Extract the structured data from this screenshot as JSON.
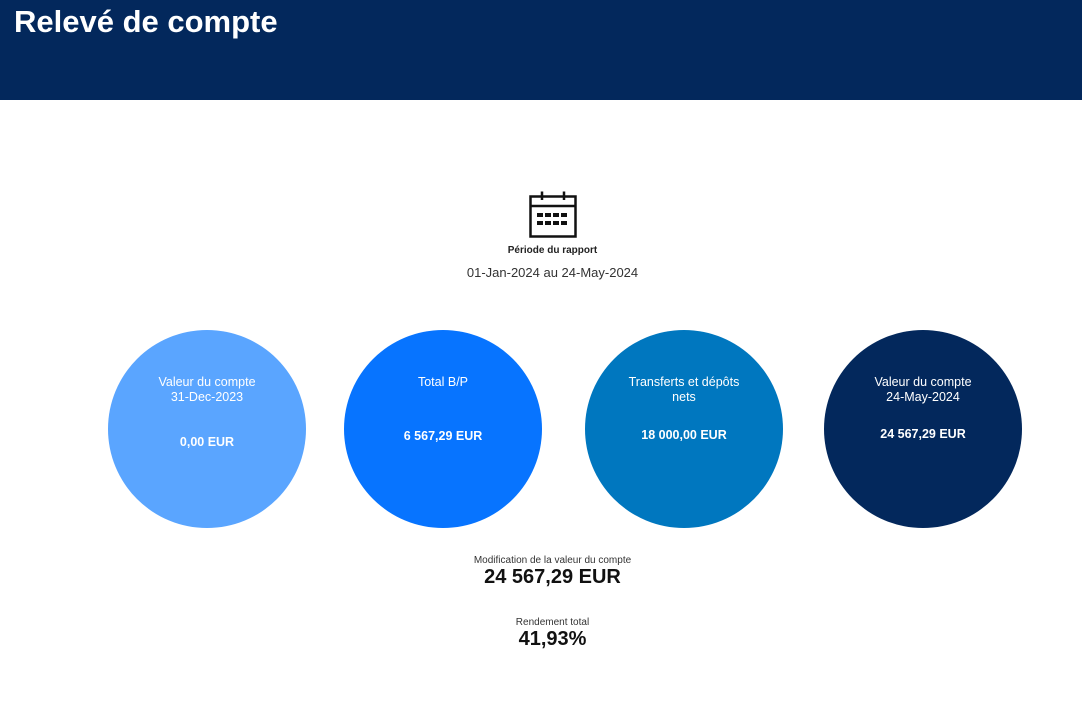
{
  "header": {
    "title": "Relevé de compte"
  },
  "period": {
    "icon": "calendar-icon",
    "label": "Période du rapport",
    "value": "01-Jan-2024 au 24-May-2024"
  },
  "cards": [
    {
      "title_line1": "Valeur du compte",
      "title_line2": "31-Dec-2023",
      "value": "0,00 EUR",
      "color": "#5aa5ff"
    },
    {
      "title_line1": "Total B/P",
      "title_line2": "",
      "value": "6 567,29 EUR",
      "color": "#0774ff"
    },
    {
      "title_line1": "Transferts et dépôts",
      "title_line2": "nets",
      "value": "18 000,00 EUR",
      "color": "#0077bf"
    },
    {
      "title_line1": "Valeur du compte",
      "title_line2": "24-May-2024",
      "value": "24 567,29 EUR",
      "color": "#03285c"
    }
  ],
  "summary": {
    "change_label": "Modification de la valeur du compte",
    "change_value": "24 567,29 EUR",
    "return_label": "Rendement total",
    "return_value": "41,93%"
  },
  "colors": {
    "header_bg": "#03285c"
  }
}
